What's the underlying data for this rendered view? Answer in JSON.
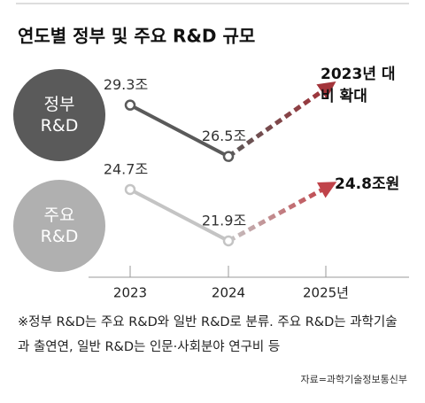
{
  "chart_data": {
    "type": "line",
    "title": "연도별 정부 및 주요 R&D 규모",
    "categories": [
      "2023",
      "2024",
      "2025년"
    ],
    "dashed_from_index": 1,
    "series": [
      {
        "name": "정부 R&D",
        "color": "#5a5a5a",
        "arrow_color": "#a3343a",
        "values": [
          29.3,
          26.5,
          30.2
        ],
        "value_labels": [
          "29.3조",
          "26.5조",
          null
        ]
      },
      {
        "name": "주요 R&D",
        "color": "#c4c4c4",
        "arrow_color": "#c0434a",
        "values": [
          24.7,
          21.9,
          24.8
        ],
        "value_labels": [
          "24.7조",
          "21.9조",
          "24.8조원"
        ]
      }
    ],
    "annotation": "2023년 대비 확대",
    "note": "※정부 R&D는 주요 R&D와 일반 R&D로 분류. 주요 R&D는 과학기술과 출연연, 일반 R&D는 인문·사회분야 연구비 등",
    "source": "자료=과학기술정보통신부"
  }
}
